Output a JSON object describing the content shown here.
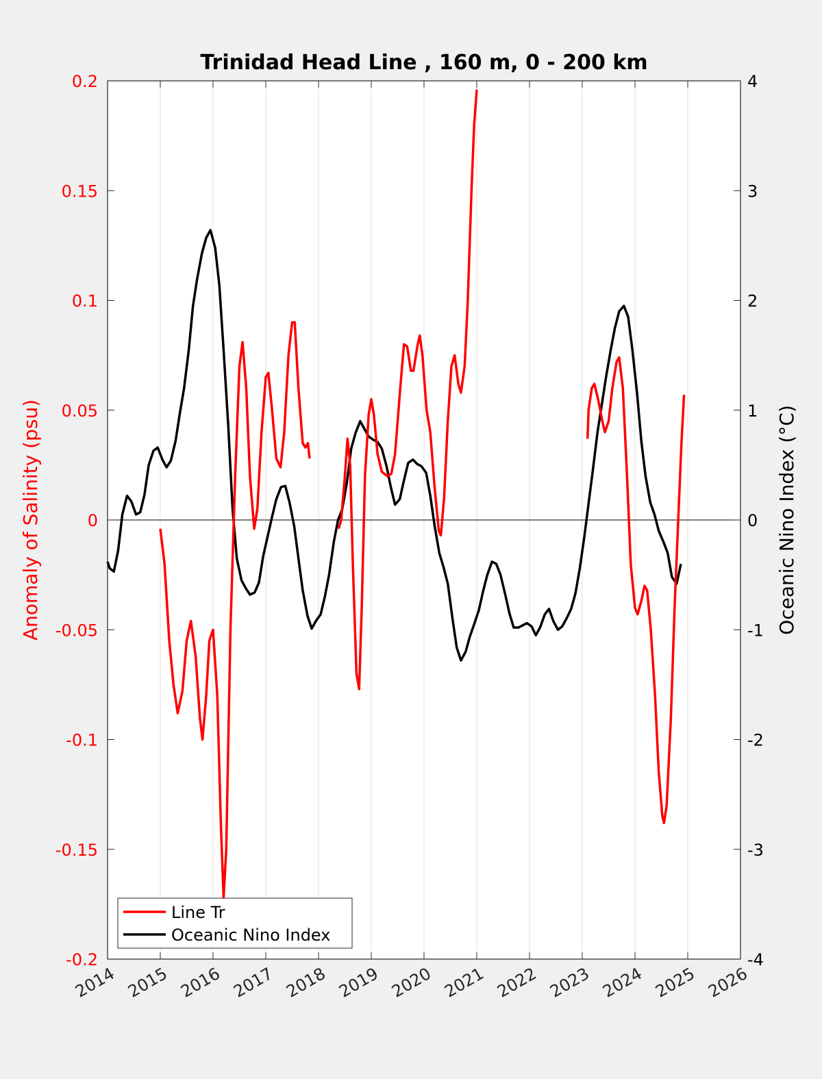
{
  "chart_data": {
    "type": "line",
    "title": "Trinidad Head Line , 160 m, 0 - 200 km",
    "xlabel": "",
    "ylabel_left": "Anomaly of Salinity (psu)",
    "ylabel_right": "Oceanic Nino Index (°C)",
    "xlim": [
      2014,
      2026
    ],
    "ylim_left": [
      -0.2,
      0.2
    ],
    "ylim_right": [
      -4,
      4
    ],
    "x_ticks": [
      "2014",
      "2015",
      "2016",
      "2017",
      "2018",
      "2019",
      "2020",
      "2021",
      "2022",
      "2023",
      "2024",
      "2025",
      "2026"
    ],
    "y_left_ticks": [
      "-0.2",
      "-0.15",
      "-0.1",
      "-0.05",
      "0",
      "0.05",
      "0.1",
      "0.15",
      "0.2"
    ],
    "y_right_ticks": [
      "-4",
      "-3",
      "-2",
      "-1",
      "0",
      "1",
      "2",
      "3",
      "4"
    ],
    "grid": "vertical",
    "legend_position": "bottom-left",
    "colors": {
      "salinity": "#ff0000",
      "oni": "#000000",
      "left_axis": "#ff0000",
      "right_axis": "#000000"
    },
    "series": [
      {
        "name": "Line Tr",
        "axis": "left",
        "segments": [
          [
            [
              2015.0,
              -0.004
            ],
            [
              2015.08,
              -0.02
            ],
            [
              2015.17,
              -0.055
            ],
            [
              2015.25,
              -0.075
            ],
            [
              2015.33,
              -0.088
            ],
            [
              2015.42,
              -0.078
            ],
            [
              2015.5,
              -0.055
            ],
            [
              2015.58,
              -0.046
            ],
            [
              2015.67,
              -0.062
            ],
            [
              2015.75,
              -0.09
            ],
            [
              2015.8,
              -0.1
            ],
            [
              2015.87,
              -0.08
            ],
            [
              2015.93,
              -0.055
            ],
            [
              2016.0,
              -0.05
            ],
            [
              2016.08,
              -0.08
            ],
            [
              2016.15,
              -0.14
            ],
            [
              2016.2,
              -0.172
            ],
            [
              2016.25,
              -0.15
            ],
            [
              2016.33,
              -0.05
            ],
            [
              2016.42,
              0.02
            ],
            [
              2016.5,
              0.07
            ],
            [
              2016.56,
              0.081
            ],
            [
              2016.63,
              0.06
            ],
            [
              2016.7,
              0.02
            ],
            [
              2016.78,
              -0.004
            ],
            [
              2016.84,
              0.005
            ],
            [
              2016.92,
              0.04
            ],
            [
              2017.0,
              0.065
            ],
            [
              2017.05,
              0.067
            ],
            [
              2017.12,
              0.05
            ],
            [
              2017.2,
              0.028
            ],
            [
              2017.28,
              0.024
            ],
            [
              2017.35,
              0.04
            ],
            [
              2017.43,
              0.075
            ],
            [
              2017.5,
              0.09
            ],
            [
              2017.55,
              0.09
            ],
            [
              2017.62,
              0.06
            ],
            [
              2017.7,
              0.035
            ],
            [
              2017.75,
              0.033
            ],
            [
              2017.8,
              0.035
            ],
            [
              2017.83,
              0.028
            ]
          ],
          [
            [
              2018.38,
              -0.004
            ],
            [
              2018.43,
              0.0
            ],
            [
              2018.5,
              0.02
            ],
            [
              2018.55,
              0.037
            ],
            [
              2018.6,
              0.025
            ],
            [
              2018.65,
              -0.02
            ],
            [
              2018.72,
              -0.07
            ],
            [
              2018.77,
              -0.077
            ],
            [
              2018.82,
              -0.04
            ],
            [
              2018.88,
              0.02
            ],
            [
              2018.95,
              0.048
            ],
            [
              2019.0,
              0.055
            ],
            [
              2019.05,
              0.048
            ],
            [
              2019.12,
              0.03
            ],
            [
              2019.2,
              0.022
            ],
            [
              2019.3,
              0.02
            ],
            [
              2019.38,
              0.021
            ],
            [
              2019.45,
              0.03
            ],
            [
              2019.55,
              0.06
            ],
            [
              2019.62,
              0.08
            ],
            [
              2019.68,
              0.079
            ],
            [
              2019.75,
              0.068
            ],
            [
              2019.8,
              0.068
            ],
            [
              2019.88,
              0.08
            ],
            [
              2019.92,
              0.084
            ],
            [
              2019.97,
              0.075
            ],
            [
              2020.05,
              0.05
            ],
            [
              2020.12,
              0.04
            ],
            [
              2020.2,
              0.015
            ],
            [
              2020.28,
              -0.005
            ],
            [
              2020.32,
              -0.007
            ],
            [
              2020.38,
              0.01
            ],
            [
              2020.45,
              0.045
            ],
            [
              2020.52,
              0.07
            ],
            [
              2020.58,
              0.075
            ],
            [
              2020.65,
              0.062
            ],
            [
              2020.7,
              0.058
            ],
            [
              2020.77,
              0.07
            ],
            [
              2020.83,
              0.1
            ],
            [
              2020.9,
              0.15
            ],
            [
              2020.95,
              0.18
            ],
            [
              2021.0,
              0.196
            ]
          ],
          [
            [
              2023.1,
              0.037
            ],
            [
              2023.12,
              0.05
            ],
            [
              2023.18,
              0.06
            ],
            [
              2023.23,
              0.062
            ],
            [
              2023.3,
              0.055
            ],
            [
              2023.38,
              0.045
            ],
            [
              2023.43,
              0.04
            ],
            [
              2023.5,
              0.045
            ],
            [
              2023.57,
              0.06
            ],
            [
              2023.65,
              0.072
            ],
            [
              2023.7,
              0.074
            ],
            [
              2023.77,
              0.06
            ],
            [
              2023.85,
              0.02
            ],
            [
              2023.92,
              -0.02
            ],
            [
              2024.0,
              -0.04
            ],
            [
              2024.05,
              -0.043
            ],
            [
              2024.12,
              -0.037
            ],
            [
              2024.18,
              -0.03
            ],
            [
              2024.23,
              -0.032
            ],
            [
              2024.3,
              -0.05
            ],
            [
              2024.38,
              -0.08
            ],
            [
              2024.45,
              -0.115
            ],
            [
              2024.52,
              -0.135
            ],
            [
              2024.55,
              -0.138
            ],
            [
              2024.6,
              -0.13
            ],
            [
              2024.68,
              -0.09
            ],
            [
              2024.75,
              -0.04
            ],
            [
              2024.82,
              0.0
            ],
            [
              2024.88,
              0.035
            ],
            [
              2024.93,
              0.057
            ]
          ]
        ]
      },
      {
        "name": "Oceanic Nino Index",
        "axis": "right",
        "points": [
          [
            2014.0,
            -0.38
          ],
          [
            2014.04,
            -0.44
          ],
          [
            2014.12,
            -0.47
          ],
          [
            2014.2,
            -0.28
          ],
          [
            2014.28,
            0.05
          ],
          [
            2014.37,
            0.22
          ],
          [
            2014.45,
            0.17
          ],
          [
            2014.54,
            0.05
          ],
          [
            2014.62,
            0.07
          ],
          [
            2014.7,
            0.23
          ],
          [
            2014.78,
            0.5
          ],
          [
            2014.87,
            0.63
          ],
          [
            2014.95,
            0.66
          ],
          [
            2015.04,
            0.55
          ],
          [
            2015.12,
            0.48
          ],
          [
            2015.2,
            0.54
          ],
          [
            2015.29,
            0.72
          ],
          [
            2015.37,
            0.97
          ],
          [
            2015.45,
            1.2
          ],
          [
            2015.54,
            1.55
          ],
          [
            2015.62,
            1.95
          ],
          [
            2015.7,
            2.2
          ],
          [
            2015.79,
            2.43
          ],
          [
            2015.87,
            2.57
          ],
          [
            2015.95,
            2.64
          ],
          [
            2016.04,
            2.48
          ],
          [
            2016.12,
            2.14
          ],
          [
            2016.2,
            1.55
          ],
          [
            2016.29,
            0.85
          ],
          [
            2016.37,
            0.1
          ],
          [
            2016.45,
            -0.35
          ],
          [
            2016.54,
            -0.55
          ],
          [
            2016.62,
            -0.62
          ],
          [
            2016.7,
            -0.68
          ],
          [
            2016.79,
            -0.66
          ],
          [
            2016.87,
            -0.57
          ],
          [
            2016.95,
            -0.33
          ],
          [
            2017.04,
            -0.14
          ],
          [
            2017.12,
            0.03
          ],
          [
            2017.2,
            0.19
          ],
          [
            2017.29,
            0.3
          ],
          [
            2017.37,
            0.31
          ],
          [
            2017.45,
            0.16
          ],
          [
            2017.54,
            -0.06
          ],
          [
            2017.62,
            -0.35
          ],
          [
            2017.7,
            -0.64
          ],
          [
            2017.79,
            -0.87
          ],
          [
            2017.87,
            -0.99
          ],
          [
            2017.95,
            -0.92
          ],
          [
            2018.04,
            -0.86
          ],
          [
            2018.12,
            -0.7
          ],
          [
            2018.2,
            -0.5
          ],
          [
            2018.29,
            -0.2
          ],
          [
            2018.37,
            0.0
          ],
          [
            2018.45,
            0.1
          ],
          [
            2018.54,
            0.35
          ],
          [
            2018.62,
            0.65
          ],
          [
            2018.7,
            0.79
          ],
          [
            2018.79,
            0.9
          ],
          [
            2018.87,
            0.83
          ],
          [
            2018.95,
            0.76
          ],
          [
            2019.04,
            0.73
          ],
          [
            2019.12,
            0.71
          ],
          [
            2019.2,
            0.65
          ],
          [
            2019.29,
            0.49
          ],
          [
            2019.37,
            0.3
          ],
          [
            2019.45,
            0.14
          ],
          [
            2019.54,
            0.19
          ],
          [
            2019.62,
            0.36
          ],
          [
            2019.7,
            0.52
          ],
          [
            2019.79,
            0.55
          ],
          [
            2019.87,
            0.51
          ],
          [
            2019.95,
            0.49
          ],
          [
            2020.04,
            0.43
          ],
          [
            2020.12,
            0.22
          ],
          [
            2020.2,
            -0.05
          ],
          [
            2020.29,
            -0.3
          ],
          [
            2020.37,
            -0.43
          ],
          [
            2020.45,
            -0.58
          ],
          [
            2020.54,
            -0.9
          ],
          [
            2020.62,
            -1.16
          ],
          [
            2020.7,
            -1.28
          ],
          [
            2020.79,
            -1.2
          ],
          [
            2020.87,
            -1.06
          ],
          [
            2020.95,
            -0.95
          ],
          [
            2021.04,
            -0.82
          ],
          [
            2021.12,
            -0.65
          ],
          [
            2021.2,
            -0.5
          ],
          [
            2021.29,
            -0.38
          ],
          [
            2021.37,
            -0.4
          ],
          [
            2021.45,
            -0.5
          ],
          [
            2021.54,
            -0.68
          ],
          [
            2021.62,
            -0.85
          ],
          [
            2021.7,
            -0.98
          ],
          [
            2021.79,
            -0.98
          ],
          [
            2021.87,
            -0.96
          ],
          [
            2021.95,
            -0.94
          ],
          [
            2022.04,
            -0.97
          ],
          [
            2022.12,
            -1.05
          ],
          [
            2022.2,
            -0.98
          ],
          [
            2022.29,
            -0.86
          ],
          [
            2022.37,
            -0.81
          ],
          [
            2022.45,
            -0.92
          ],
          [
            2022.54,
            -1.0
          ],
          [
            2022.62,
            -0.97
          ],
          [
            2022.7,
            -0.9
          ],
          [
            2022.79,
            -0.81
          ],
          [
            2022.87,
            -0.67
          ],
          [
            2022.95,
            -0.45
          ],
          [
            2023.04,
            -0.15
          ],
          [
            2023.12,
            0.15
          ],
          [
            2023.2,
            0.45
          ],
          [
            2023.29,
            0.8
          ],
          [
            2023.37,
            1.05
          ],
          [
            2023.45,
            1.3
          ],
          [
            2023.54,
            1.55
          ],
          [
            2023.62,
            1.75
          ],
          [
            2023.7,
            1.9
          ],
          [
            2023.79,
            1.95
          ],
          [
            2023.87,
            1.85
          ],
          [
            2023.95,
            1.55
          ],
          [
            2024.04,
            1.15
          ],
          [
            2024.12,
            0.72
          ],
          [
            2024.2,
            0.4
          ],
          [
            2024.29,
            0.16
          ],
          [
            2024.37,
            0.05
          ],
          [
            2024.45,
            -0.1
          ],
          [
            2024.54,
            -0.2
          ],
          [
            2024.62,
            -0.3
          ],
          [
            2024.7,
            -0.52
          ],
          [
            2024.79,
            -0.58
          ],
          [
            2024.87,
            -0.4
          ]
        ]
      }
    ]
  }
}
